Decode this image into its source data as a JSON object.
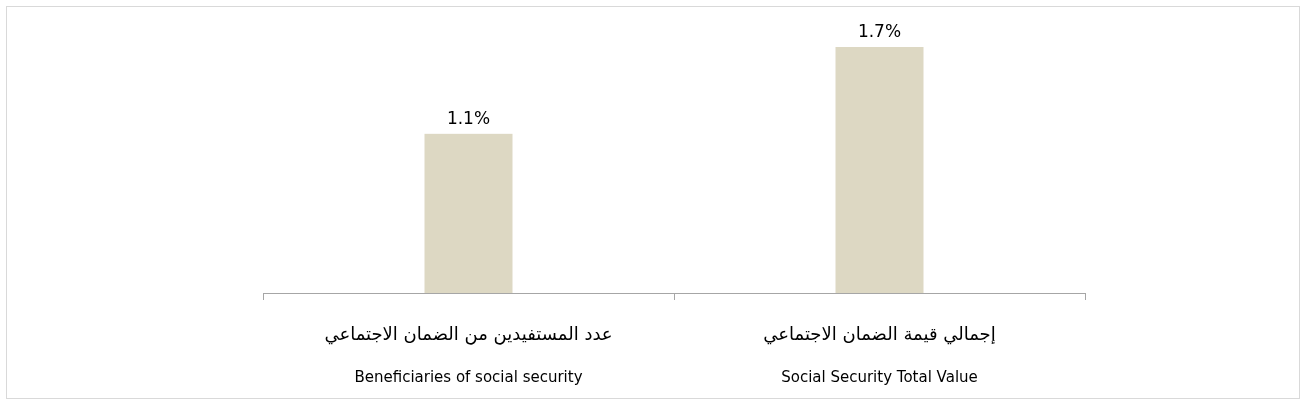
{
  "chart_data": {
    "type": "bar",
    "categories": [
      "عدد المستفيدين من الضمان الاجتماعي\nBeneficiaries of social security",
      "إجمالي قيمة الضمان الاجتماعي\nSocial Security Total Value"
    ],
    "values": [
      1.1,
      1.7
    ],
    "value_labels": [
      "1.1%",
      "1.7%"
    ],
    "color": "#ddd8c3"
  }
}
